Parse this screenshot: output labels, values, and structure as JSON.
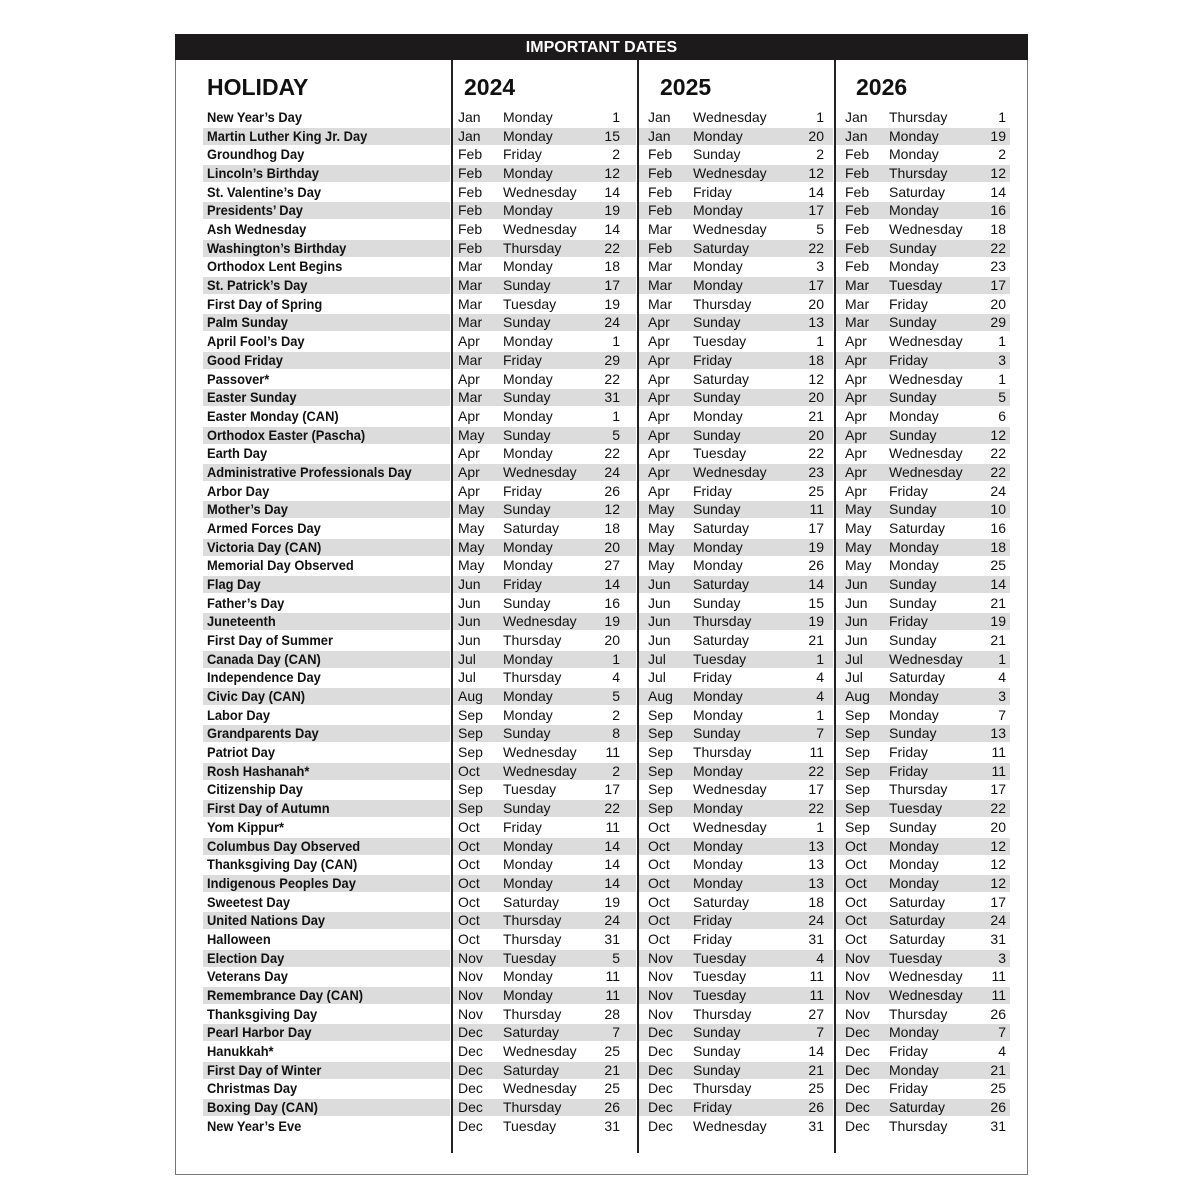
{
  "title": "IMPORTANT DATES",
  "columns": {
    "holiday": "HOLIDAY",
    "years": [
      "2024",
      "2025",
      "2026"
    ]
  },
  "shade_color": "#dcdcdc",
  "rows": [
    {
      "holiday": "New Year’s Day",
      "dates": [
        [
          "Jan",
          "Monday",
          "1"
        ],
        [
          "Jan",
          "Wednesday",
          "1"
        ],
        [
          "Jan",
          "Thursday",
          "1"
        ]
      ]
    },
    {
      "holiday": "Martin Luther King Jr. Day",
      "dates": [
        [
          "Jan",
          "Monday",
          "15"
        ],
        [
          "Jan",
          "Monday",
          "20"
        ],
        [
          "Jan",
          "Monday",
          "19"
        ]
      ]
    },
    {
      "holiday": "Groundhog Day",
      "dates": [
        [
          "Feb",
          "Friday",
          "2"
        ],
        [
          "Feb",
          "Sunday",
          "2"
        ],
        [
          "Feb",
          "Monday",
          "2"
        ]
      ]
    },
    {
      "holiday": "Lincoln’s Birthday",
      "dates": [
        [
          "Feb",
          "Monday",
          "12"
        ],
        [
          "Feb",
          "Wednesday",
          "12"
        ],
        [
          "Feb",
          "Thursday",
          "12"
        ]
      ]
    },
    {
      "holiday": "St. Valentine’s Day",
      "dates": [
        [
          "Feb",
          "Wednesday",
          "14"
        ],
        [
          "Feb",
          "Friday",
          "14"
        ],
        [
          "Feb",
          "Saturday",
          "14"
        ]
      ]
    },
    {
      "holiday": "Presidents’ Day",
      "dates": [
        [
          "Feb",
          "Monday",
          "19"
        ],
        [
          "Feb",
          "Monday",
          "17"
        ],
        [
          "Feb",
          "Monday",
          "16"
        ]
      ]
    },
    {
      "holiday": "Ash Wednesday",
      "dates": [
        [
          "Feb",
          "Wednesday",
          "14"
        ],
        [
          "Mar",
          "Wednesday",
          "5"
        ],
        [
          "Feb",
          "Wednesday",
          "18"
        ]
      ]
    },
    {
      "holiday": "Washington’s Birthday",
      "dates": [
        [
          "Feb",
          "Thursday",
          "22"
        ],
        [
          "Feb",
          "Saturday",
          "22"
        ],
        [
          "Feb",
          "Sunday",
          "22"
        ]
      ]
    },
    {
      "holiday": "Orthodox Lent Begins",
      "dates": [
        [
          "Mar",
          "Monday",
          "18"
        ],
        [
          "Mar",
          "Monday",
          "3"
        ],
        [
          "Feb",
          "Monday",
          "23"
        ]
      ]
    },
    {
      "holiday": "St. Patrick’s Day",
      "dates": [
        [
          "Mar",
          "Sunday",
          "17"
        ],
        [
          "Mar",
          "Monday",
          "17"
        ],
        [
          "Mar",
          "Tuesday",
          "17"
        ]
      ]
    },
    {
      "holiday": "First Day of Spring",
      "dates": [
        [
          "Mar",
          "Tuesday",
          "19"
        ],
        [
          "Mar",
          "Thursday",
          "20"
        ],
        [
          "Mar",
          "Friday",
          "20"
        ]
      ]
    },
    {
      "holiday": "Palm Sunday",
      "dates": [
        [
          "Mar",
          "Sunday",
          "24"
        ],
        [
          "Apr",
          "Sunday",
          "13"
        ],
        [
          "Mar",
          "Sunday",
          "29"
        ]
      ]
    },
    {
      "holiday": "April Fool’s Day",
      "dates": [
        [
          "Apr",
          "Monday",
          "1"
        ],
        [
          "Apr",
          "Tuesday",
          "1"
        ],
        [
          "Apr",
          "Wednesday",
          "1"
        ]
      ]
    },
    {
      "holiday": "Good Friday",
      "dates": [
        [
          "Mar",
          "Friday",
          "29"
        ],
        [
          "Apr",
          "Friday",
          "18"
        ],
        [
          "Apr",
          "Friday",
          "3"
        ]
      ]
    },
    {
      "holiday": "Passover*",
      "dates": [
        [
          "Apr",
          "Monday",
          "22"
        ],
        [
          "Apr",
          "Saturday",
          "12"
        ],
        [
          "Apr",
          "Wednesday",
          "1"
        ]
      ]
    },
    {
      "holiday": "Easter Sunday",
      "dates": [
        [
          "Mar",
          "Sunday",
          "31"
        ],
        [
          "Apr",
          "Sunday",
          "20"
        ],
        [
          "Apr",
          "Sunday",
          "5"
        ]
      ]
    },
    {
      "holiday": "Easter Monday (CAN)",
      "dates": [
        [
          "Apr",
          "Monday",
          "1"
        ],
        [
          "Apr",
          "Monday",
          "21"
        ],
        [
          "Apr",
          "Monday",
          "6"
        ]
      ]
    },
    {
      "holiday": "Orthodox Easter (Pascha)",
      "dates": [
        [
          "May",
          "Sunday",
          "5"
        ],
        [
          "Apr",
          "Sunday",
          "20"
        ],
        [
          "Apr",
          "Sunday",
          "12"
        ]
      ]
    },
    {
      "holiday": "Earth Day",
      "dates": [
        [
          "Apr",
          "Monday",
          "22"
        ],
        [
          "Apr",
          "Tuesday",
          "22"
        ],
        [
          "Apr",
          "Wednesday",
          "22"
        ]
      ]
    },
    {
      "holiday": "Administrative Professionals Day",
      "dates": [
        [
          "Apr",
          "Wednesday",
          "24"
        ],
        [
          "Apr",
          "Wednesday",
          "23"
        ],
        [
          "Apr",
          "Wednesday",
          "22"
        ]
      ]
    },
    {
      "holiday": "Arbor Day",
      "dates": [
        [
          "Apr",
          "Friday",
          "26"
        ],
        [
          "Apr",
          "Friday",
          "25"
        ],
        [
          "Apr",
          "Friday",
          "24"
        ]
      ]
    },
    {
      "holiday": "Mother’s Day",
      "dates": [
        [
          "May",
          "Sunday",
          "12"
        ],
        [
          "May",
          "Sunday",
          "11"
        ],
        [
          "May",
          "Sunday",
          "10"
        ]
      ]
    },
    {
      "holiday": "Armed Forces Day",
      "dates": [
        [
          "May",
          "Saturday",
          "18"
        ],
        [
          "May",
          "Saturday",
          "17"
        ],
        [
          "May",
          "Saturday",
          "16"
        ]
      ]
    },
    {
      "holiday": "Victoria Day (CAN)",
      "dates": [
        [
          "May",
          "Monday",
          "20"
        ],
        [
          "May",
          "Monday",
          "19"
        ],
        [
          "May",
          "Monday",
          "18"
        ]
      ]
    },
    {
      "holiday": "Memorial Day Observed",
      "dates": [
        [
          "May",
          "Monday",
          "27"
        ],
        [
          "May",
          "Monday",
          "26"
        ],
        [
          "May",
          "Monday",
          "25"
        ]
      ]
    },
    {
      "holiday": "Flag Day",
      "dates": [
        [
          "Jun",
          "Friday",
          "14"
        ],
        [
          "Jun",
          "Saturday",
          "14"
        ],
        [
          "Jun",
          "Sunday",
          "14"
        ]
      ]
    },
    {
      "holiday": "Father’s Day",
      "dates": [
        [
          "Jun",
          "Sunday",
          "16"
        ],
        [
          "Jun",
          "Sunday",
          "15"
        ],
        [
          "Jun",
          "Sunday",
          "21"
        ]
      ]
    },
    {
      "holiday": "Juneteenth",
      "dates": [
        [
          "Jun",
          "Wednesday",
          "19"
        ],
        [
          "Jun",
          "Thursday",
          "19"
        ],
        [
          "Jun",
          "Friday",
          "19"
        ]
      ]
    },
    {
      "holiday": "First Day of Summer",
      "dates": [
        [
          "Jun",
          "Thursday",
          "20"
        ],
        [
          "Jun",
          "Saturday",
          "21"
        ],
        [
          "Jun",
          "Sunday",
          "21"
        ]
      ]
    },
    {
      "holiday": "Canada Day (CAN)",
      "dates": [
        [
          "Jul",
          "Monday",
          "1"
        ],
        [
          "Jul",
          "Tuesday",
          "1"
        ],
        [
          "Jul",
          "Wednesday",
          "1"
        ]
      ]
    },
    {
      "holiday": "Independence Day",
      "dates": [
        [
          "Jul",
          "Thursday",
          "4"
        ],
        [
          "Jul",
          "Friday",
          "4"
        ],
        [
          "Jul",
          "Saturday",
          "4"
        ]
      ]
    },
    {
      "holiday": "Civic Day (CAN)",
      "dates": [
        [
          "Aug",
          "Monday",
          "5"
        ],
        [
          "Aug",
          "Monday",
          "4"
        ],
        [
          "Aug",
          "Monday",
          "3"
        ]
      ]
    },
    {
      "holiday": "Labor Day",
      "dates": [
        [
          "Sep",
          "Monday",
          "2"
        ],
        [
          "Sep",
          "Monday",
          "1"
        ],
        [
          "Sep",
          "Monday",
          "7"
        ]
      ]
    },
    {
      "holiday": "Grandparents Day",
      "dates": [
        [
          "Sep",
          "Sunday",
          "8"
        ],
        [
          "Sep",
          "Sunday",
          "7"
        ],
        [
          "Sep",
          "Sunday",
          "13"
        ]
      ]
    },
    {
      "holiday": "Patriot Day",
      "dates": [
        [
          "Sep",
          "Wednesday",
          "11"
        ],
        [
          "Sep",
          "Thursday",
          "11"
        ],
        [
          "Sep",
          "Friday",
          "11"
        ]
      ]
    },
    {
      "holiday": "Rosh Hashanah*",
      "dates": [
        [
          "Oct",
          "Wednesday",
          "2"
        ],
        [
          "Sep",
          "Monday",
          "22"
        ],
        [
          "Sep",
          "Friday",
          "11"
        ]
      ]
    },
    {
      "holiday": "Citizenship Day",
      "dates": [
        [
          "Sep",
          "Tuesday",
          "17"
        ],
        [
          "Sep",
          "Wednesday",
          "17"
        ],
        [
          "Sep",
          "Thursday",
          "17"
        ]
      ]
    },
    {
      "holiday": "First Day of Autumn",
      "dates": [
        [
          "Sep",
          "Sunday",
          "22"
        ],
        [
          "Sep",
          "Monday",
          "22"
        ],
        [
          "Sep",
          "Tuesday",
          "22"
        ]
      ]
    },
    {
      "holiday": "Yom Kippur*",
      "dates": [
        [
          "Oct",
          "Friday",
          "11"
        ],
        [
          "Oct",
          "Wednesday",
          "1"
        ],
        [
          "Sep",
          "Sunday",
          "20"
        ]
      ]
    },
    {
      "holiday": "Columbus Day Observed",
      "dates": [
        [
          "Oct",
          "Monday",
          "14"
        ],
        [
          "Oct",
          "Monday",
          "13"
        ],
        [
          "Oct",
          "Monday",
          "12"
        ]
      ]
    },
    {
      "holiday": "Thanksgiving Day (CAN)",
      "dates": [
        [
          "Oct",
          "Monday",
          "14"
        ],
        [
          "Oct",
          "Monday",
          "13"
        ],
        [
          "Oct",
          "Monday",
          "12"
        ]
      ]
    },
    {
      "holiday": "Indigenous Peoples Day",
      "dates": [
        [
          "Oct",
          "Monday",
          "14"
        ],
        [
          "Oct",
          "Monday",
          "13"
        ],
        [
          "Oct",
          "Monday",
          "12"
        ]
      ]
    },
    {
      "holiday": "Sweetest Day",
      "dates": [
        [
          "Oct",
          "Saturday",
          "19"
        ],
        [
          "Oct",
          "Saturday",
          "18"
        ],
        [
          "Oct",
          "Saturday",
          "17"
        ]
      ]
    },
    {
      "holiday": "United Nations Day",
      "dates": [
        [
          "Oct",
          "Thursday",
          "24"
        ],
        [
          "Oct",
          "Friday",
          "24"
        ],
        [
          "Oct",
          "Saturday",
          "24"
        ]
      ]
    },
    {
      "holiday": "Halloween",
      "dates": [
        [
          "Oct",
          "Thursday",
          "31"
        ],
        [
          "Oct",
          "Friday",
          "31"
        ],
        [
          "Oct",
          "Saturday",
          "31"
        ]
      ]
    },
    {
      "holiday": "Election Day",
      "dates": [
        [
          "Nov",
          "Tuesday",
          "5"
        ],
        [
          "Nov",
          "Tuesday",
          "4"
        ],
        [
          "Nov",
          "Tuesday",
          "3"
        ]
      ]
    },
    {
      "holiday": "Veterans Day",
      "dates": [
        [
          "Nov",
          "Monday",
          "11"
        ],
        [
          "Nov",
          "Tuesday",
          "11"
        ],
        [
          "Nov",
          "Wednesday",
          "11"
        ]
      ]
    },
    {
      "holiday": "Remembrance Day (CAN)",
      "dates": [
        [
          "Nov",
          "Monday",
          "11"
        ],
        [
          "Nov",
          "Tuesday",
          "11"
        ],
        [
          "Nov",
          "Wednesday",
          "11"
        ]
      ]
    },
    {
      "holiday": "Thanksgiving Day",
      "dates": [
        [
          "Nov",
          "Thursday",
          "28"
        ],
        [
          "Nov",
          "Thursday",
          "27"
        ],
        [
          "Nov",
          "Thursday",
          "26"
        ]
      ]
    },
    {
      "holiday": "Pearl Harbor Day",
      "dates": [
        [
          "Dec",
          "Saturday",
          "7"
        ],
        [
          "Dec",
          "Sunday",
          "7"
        ],
        [
          "Dec",
          "Monday",
          "7"
        ]
      ]
    },
    {
      "holiday": "Hanukkah*",
      "dates": [
        [
          "Dec",
          "Wednesday",
          "25"
        ],
        [
          "Dec",
          "Sunday",
          "14"
        ],
        [
          "Dec",
          "Friday",
          "4"
        ]
      ]
    },
    {
      "holiday": "First Day of Winter",
      "dates": [
        [
          "Dec",
          "Saturday",
          "21"
        ],
        [
          "Dec",
          "Sunday",
          "21"
        ],
        [
          "Dec",
          "Monday",
          "21"
        ]
      ]
    },
    {
      "holiday": "Christmas Day",
      "dates": [
        [
          "Dec",
          "Wednesday",
          "25"
        ],
        [
          "Dec",
          "Thursday",
          "25"
        ],
        [
          "Dec",
          "Friday",
          "25"
        ]
      ]
    },
    {
      "holiday": "Boxing Day (CAN)",
      "dates": [
        [
          "Dec",
          "Thursday",
          "26"
        ],
        [
          "Dec",
          "Friday",
          "26"
        ],
        [
          "Dec",
          "Saturday",
          "26"
        ]
      ]
    },
    {
      "holiday": "New Year’s Eve",
      "dates": [
        [
          "Dec",
          "Tuesday",
          "31"
        ],
        [
          "Dec",
          "Wednesday",
          "31"
        ],
        [
          "Dec",
          "Thursday",
          "31"
        ]
      ]
    }
  ]
}
